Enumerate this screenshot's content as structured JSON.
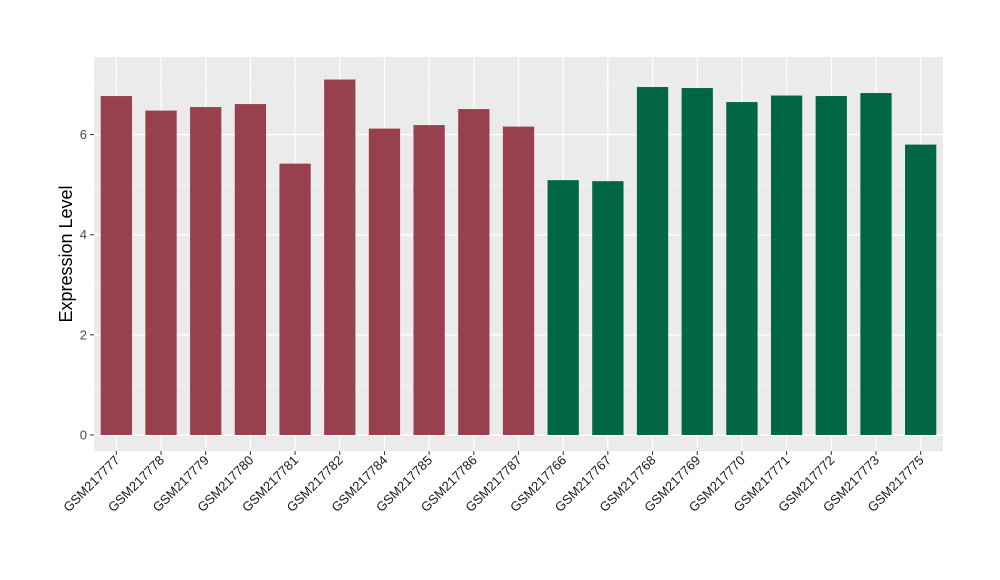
{
  "chart_data": {
    "type": "bar",
    "title": "",
    "xlabel": "",
    "ylabel": "Expression Level",
    "ylim": [
      -0.32,
      7.55
    ],
    "yticks": [
      0,
      2,
      4,
      6
    ],
    "grid": true,
    "background": "#ebebeb",
    "categories": [
      "GSM217777",
      "GSM217778",
      "GSM217779",
      "GSM217780",
      "GSM217781",
      "GSM217782",
      "GSM217784",
      "GSM217785",
      "GSM217786",
      "GSM217787",
      "GSM217766",
      "GSM217767",
      "GSM217768",
      "GSM217769",
      "GSM217770",
      "GSM217771",
      "GSM217772",
      "GSM217773",
      "GSM217775"
    ],
    "values": [
      6.77,
      6.48,
      6.55,
      6.61,
      5.42,
      7.1,
      6.12,
      6.19,
      6.51,
      6.16,
      5.09,
      5.07,
      6.95,
      6.93,
      6.65,
      6.78,
      6.77,
      6.83,
      5.8
    ],
    "bar_colors": [
      "#99404f",
      "#99404f",
      "#99404f",
      "#99404f",
      "#99404f",
      "#99404f",
      "#99404f",
      "#99404f",
      "#99404f",
      "#99404f",
      "#006644",
      "#006644",
      "#006644",
      "#006644",
      "#006644",
      "#006644",
      "#006644",
      "#006644",
      "#006644"
    ]
  }
}
